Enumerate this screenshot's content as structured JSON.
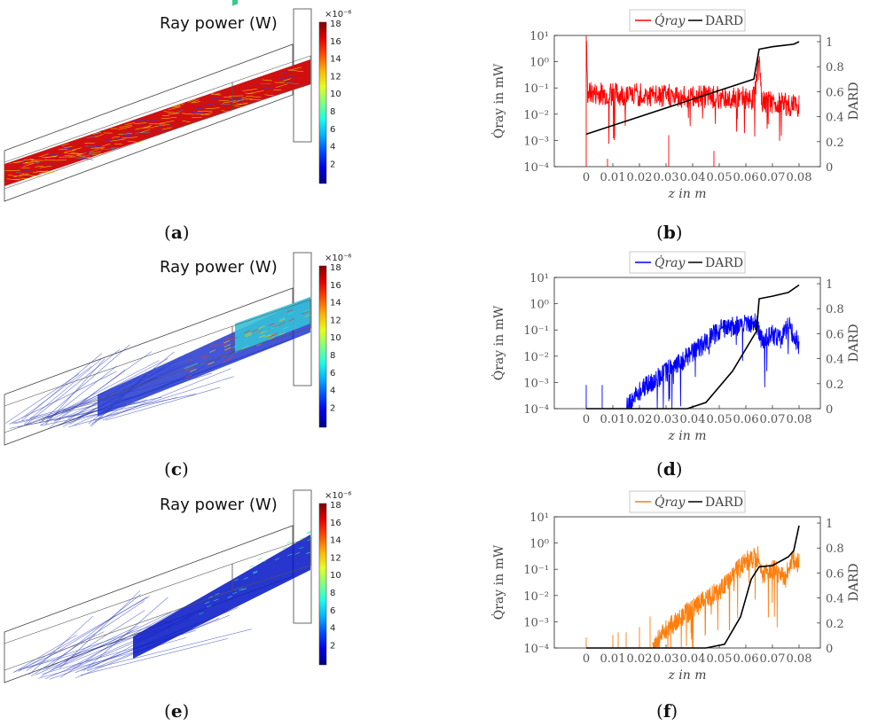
{
  "captions": {
    "a": "a",
    "b": "b",
    "c": "c",
    "d": "d",
    "e": "e",
    "f": "f"
  },
  "simulation_panels": [
    {
      "title": "Ray power (W)",
      "colorbar_exponent": "×10⁻⁶",
      "colorbar_ticks": [
        "18",
        "16",
        "14",
        "12",
        "10",
        "8",
        "6",
        "4",
        "2"
      ],
      "fill_level": "high"
    },
    {
      "title": "Ray power (W)",
      "colorbar_exponent": "×10⁻⁶",
      "colorbar_ticks": [
        "18",
        "16",
        "14",
        "12",
        "10",
        "8",
        "6",
        "4",
        "2"
      ],
      "fill_level": "medium"
    },
    {
      "title": "Ray power (W)",
      "colorbar_exponent": "×10⁻⁶",
      "colorbar_ticks": [
        "18",
        "16",
        "14",
        "12",
        "10",
        "8",
        "6",
        "4",
        "2"
      ],
      "fill_level": "low"
    }
  ],
  "chart_data": [
    {
      "type": "line",
      "xlabel": "z in m",
      "ylabel_left": "Q̇ray in mW",
      "ylabel_right": "DARD",
      "xlim": [
        -0.012,
        0.088
      ],
      "xticks": [
        "0",
        "0.01",
        "0.02",
        "0.03",
        "0.04",
        "0.05",
        "0.06",
        "0.07",
        "0.08"
      ],
      "yscale_left": "log",
      "ylim_left_exp": [
        -4,
        1
      ],
      "yticks_left": [
        "10⁻⁴",
        "10⁻³",
        "10⁻²",
        "10⁻¹",
        "10⁰",
        "10¹"
      ],
      "ylim_right": [
        0,
        1.05
      ],
      "yticks_right": [
        "0",
        "0.2",
        "0.4",
        "0.6",
        "0.8",
        "1"
      ],
      "legend": [
        "Q̇ray",
        "DARD"
      ],
      "series_colors": {
        "q": "#ff0000",
        "dard": "#000000"
      },
      "q_profile": {
        "start": 0.0,
        "points": [
          [
            0.0,
            1.0
          ],
          [
            0.0005,
            -1.2
          ],
          [
            0.063,
            -1.4
          ],
          [
            0.064,
            -0.6
          ],
          [
            0.065,
            -0.1
          ],
          [
            0.066,
            -1.5
          ],
          [
            0.08,
            -1.7
          ]
        ],
        "noise": 0.45,
        "spikes": [
          [
            0.0,
            1.0
          ],
          [
            0.008,
            -3.7
          ],
          [
            0.031,
            -2.8
          ],
          [
            0.048,
            -3.4
          ]
        ]
      },
      "dard": [
        [
          0.0,
          0.26
        ],
        [
          0.063,
          0.7
        ],
        [
          0.065,
          0.94
        ],
        [
          0.07,
          0.96
        ],
        [
          0.078,
          0.98
        ],
        [
          0.08,
          1.0
        ]
      ]
    },
    {
      "type": "line",
      "xlabel": "z in m",
      "ylabel_left": "Q̇ray in mW",
      "ylabel_right": "DARD",
      "xlim": [
        -0.012,
        0.088
      ],
      "xticks": [
        "0",
        "0.01",
        "0.02",
        "0.03",
        "0.04",
        "0.05",
        "0.06",
        "0.07",
        "0.08"
      ],
      "yscale_left": "log",
      "ylim_left_exp": [
        -4,
        1
      ],
      "yticks_left": [
        "10⁻⁴",
        "10⁻³",
        "10⁻²",
        "10⁻¹",
        "10⁰",
        "10¹"
      ],
      "ylim_right": [
        0,
        1.05
      ],
      "yticks_right": [
        "0",
        "0.2",
        "0.4",
        "0.6",
        "0.8",
        "1"
      ],
      "legend": [
        "Q̇ray",
        "DARD"
      ],
      "series_colors": {
        "q": "#0000ff",
        "dard": "#000000"
      },
      "q_profile": {
        "start": 0.015,
        "points": [
          [
            0.015,
            -4.0
          ],
          [
            0.02,
            -3.3
          ],
          [
            0.03,
            -2.6
          ],
          [
            0.04,
            -1.9
          ],
          [
            0.05,
            -1.0
          ],
          [
            0.06,
            -0.75
          ],
          [
            0.064,
            -0.7
          ],
          [
            0.066,
            -1.4
          ],
          [
            0.07,
            -1.2
          ],
          [
            0.073,
            -1.4
          ],
          [
            0.076,
            -0.8
          ],
          [
            0.08,
            -1.6
          ]
        ],
        "noise": 0.4,
        "spikes": [
          [
            0.0,
            -3.1
          ],
          [
            0.006,
            -3.1
          ]
        ]
      },
      "dard": [
        [
          0.0,
          0.0
        ],
        [
          0.038,
          0.0
        ],
        [
          0.045,
          0.05
        ],
        [
          0.055,
          0.3
        ],
        [
          0.064,
          0.62
        ],
        [
          0.065,
          0.88
        ],
        [
          0.07,
          0.9
        ],
        [
          0.076,
          0.93
        ],
        [
          0.08,
          0.99
        ]
      ]
    },
    {
      "type": "line",
      "xlabel": "z in m",
      "ylabel_left": "Q̇ray in mW",
      "ylabel_right": "DARD",
      "xlim": [
        -0.012,
        0.088
      ],
      "xticks": [
        "0",
        "0.01",
        "0.02",
        "0.03",
        "0.04",
        "0.05",
        "0.06",
        "0.07",
        "0.08"
      ],
      "yscale_left": "log",
      "ylim_left_exp": [
        -4,
        1
      ],
      "yticks_left": [
        "10⁻⁴",
        "10⁻³",
        "10⁻²",
        "10⁻¹",
        "10⁰",
        "10¹"
      ],
      "ylim_right": [
        0,
        1.05
      ],
      "yticks_right": [
        "0",
        "0.2",
        "0.4",
        "0.6",
        "0.8",
        "1"
      ],
      "legend": [
        "Q̇ray",
        "DARD"
      ],
      "series_colors": {
        "q": "#ff7f0e",
        "dard": "#000000"
      },
      "q_profile": {
        "start": 0.025,
        "points": [
          [
            0.025,
            -4.0
          ],
          [
            0.03,
            -3.3
          ],
          [
            0.04,
            -2.5
          ],
          [
            0.05,
            -1.8
          ],
          [
            0.06,
            -0.7
          ],
          [
            0.065,
            -0.5
          ],
          [
            0.066,
            -1.2
          ],
          [
            0.07,
            -1.0
          ],
          [
            0.075,
            -1.3
          ],
          [
            0.077,
            -0.6
          ],
          [
            0.08,
            -0.8
          ]
        ],
        "noise": 0.4,
        "spikes": [
          [
            0.0,
            -3.6
          ],
          [
            0.01,
            -3.5
          ],
          [
            0.012,
            -3.4
          ],
          [
            0.015,
            -3.4
          ],
          [
            0.02,
            -3.2
          ],
          [
            0.024,
            -2.8
          ]
        ]
      },
      "dard": [
        [
          0.0,
          0.0
        ],
        [
          0.045,
          0.0
        ],
        [
          0.052,
          0.03
        ],
        [
          0.058,
          0.25
        ],
        [
          0.062,
          0.55
        ],
        [
          0.065,
          0.65
        ],
        [
          0.07,
          0.66
        ],
        [
          0.076,
          0.73
        ],
        [
          0.078,
          0.78
        ],
        [
          0.08,
          0.98
        ]
      ]
    }
  ]
}
